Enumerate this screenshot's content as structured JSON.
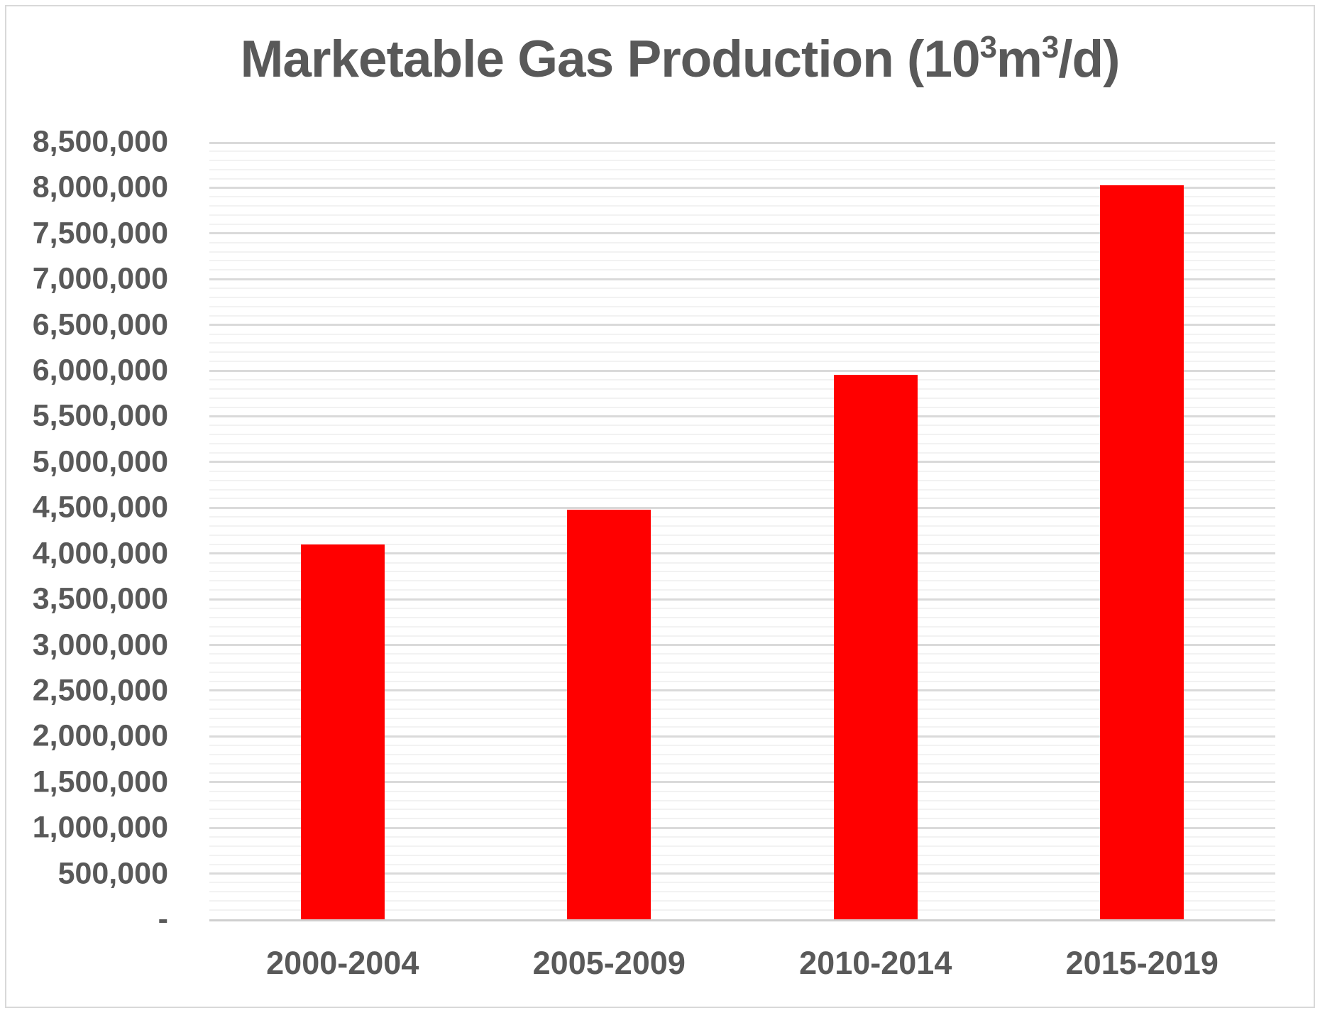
{
  "chart_data": {
    "type": "bar",
    "title": "Marketable Gas Production (10³m³/d)",
    "title_rich": {
      "seg1": "Marketable Gas Production (10",
      "sup1": "3",
      "seg2": "m",
      "sup2": "3",
      "seg3": "/d)"
    },
    "categories": [
      "2000-2004",
      "2005-2009",
      "2010-2014",
      "2015-2019"
    ],
    "values": [
      4100000,
      4480000,
      5950000,
      8030000
    ],
    "xlabel": "",
    "ylabel": "",
    "ylim": [
      0,
      8500000
    ],
    "y_major_step": 500000,
    "y_minor_step": 100000,
    "y_tick_labels": [
      "-",
      "500,000",
      "1,000,000",
      "1,500,000",
      "2,000,000",
      "2,500,000",
      "3,000,000",
      "3,500,000",
      "4,000,000",
      "4,500,000",
      "5,000,000",
      "5,500,000",
      "6,000,000",
      "6,500,000",
      "7,000,000",
      "7,500,000",
      "8,000,000",
      "8,500,000"
    ],
    "grid": "major-and-minor-horizontal",
    "legend_position": "none",
    "colors": {
      "bar": "#ff0000",
      "text": "#595959",
      "major_gridline": "#dadada",
      "minor_gridline": "#f2f2f2",
      "axis_baseline": "#cfcfcf",
      "frame_border": "#d9d9d9",
      "background": "#ffffff"
    }
  }
}
